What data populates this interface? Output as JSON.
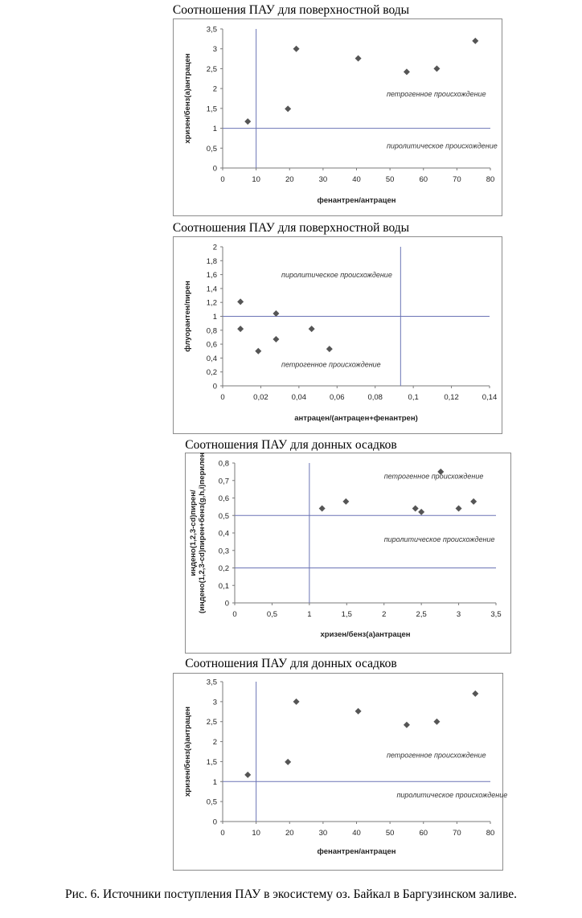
{
  "chart_data": [
    {
      "type": "scatter",
      "title": "Соотношения ПАУ для поверхностной воды",
      "xlabel": "фенантрен/антрацен",
      "ylabel": "хризен/бенз(а)антрацен",
      "xlim": [
        0,
        80
      ],
      "ylim": [
        0,
        3.5
      ],
      "x_ticks": [
        "0",
        "10",
        "20",
        "30",
        "40",
        "50",
        "60",
        "70",
        "80"
      ],
      "y_ticks": [
        "0",
        "0,5",
        "1",
        "1,5",
        "2",
        "2,5",
        "3",
        "3,5"
      ],
      "grid": false,
      "marker_color": "#555555",
      "line_color": "#6b74b5",
      "vlines": [
        10
      ],
      "hlines": [
        1
      ],
      "regions": [
        {
          "text": "петрогенное происхождение",
          "x": 49,
          "y": 1.8
        },
        {
          "text": "пиролитическое происхождение",
          "x": 49,
          "y": 0.5
        }
      ],
      "points": [
        {
          "x": 7.5,
          "y": 1.17
        },
        {
          "x": 19.5,
          "y": 1.49
        },
        {
          "x": 22,
          "y": 3.0
        },
        {
          "x": 40.5,
          "y": 2.76
        },
        {
          "x": 55,
          "y": 2.42
        },
        {
          "x": 64,
          "y": 2.5
        },
        {
          "x": 75.5,
          "y": 3.2
        }
      ]
    },
    {
      "type": "scatter",
      "title": "Соотношения ПАУ для поверхностной воды",
      "xlabel": "антрацен/(антрацен+фенантрен)",
      "ylabel": "флуорантен/пирен",
      "xlim": [
        0,
        0.15
      ],
      "ylim": [
        0,
        2
      ],
      "x_ticks": [
        "0",
        "0,02",
        "0,04",
        "0,06",
        "0,08",
        "0,1",
        "0,12",
        "0,14"
      ],
      "y_ticks": [
        "0",
        "0,2",
        "0,4",
        "0,6",
        "0,8",
        "1",
        "1,2",
        "1,4",
        "1,6",
        "1,8",
        "2"
      ],
      "grid": false,
      "marker_color": "#555555",
      "line_color": "#6b74b5",
      "vlines": [
        0.1
      ],
      "hlines": [
        1
      ],
      "regions": [
        {
          "text": "пиролитическое происхождение",
          "x": 0.033,
          "y": 1.56
        },
        {
          "text": "петрогенное происхождение",
          "x": 0.033,
          "y": 0.27
        }
      ],
      "points": [
        {
          "x": 0.01,
          "y": 1.21
        },
        {
          "x": 0.01,
          "y": 0.82
        },
        {
          "x": 0.02,
          "y": 0.5
        },
        {
          "x": 0.03,
          "y": 1.04
        },
        {
          "x": 0.03,
          "y": 0.67
        },
        {
          "x": 0.05,
          "y": 0.82
        },
        {
          "x": 0.06,
          "y": 0.53
        }
      ]
    },
    {
      "type": "scatter",
      "title": "Соотношения ПАУ для донных осадков",
      "xlabel": "хризен/бенз(а)антрацен",
      "ylabel": "индено(1,2,3-cd)пирен/(индено(1,2,3-cd)пирен+бенз(g,h,i)перилен",
      "xlim": [
        0,
        3.5
      ],
      "ylim": [
        0,
        0.8
      ],
      "x_ticks": [
        "0",
        "0,5",
        "1",
        "1,5",
        "2",
        "2,5",
        "3",
        "3,5"
      ],
      "y_ticks": [
        "0",
        "0,1",
        "0,2",
        "0,3",
        "0,4",
        "0,5",
        "0,6",
        "0,7",
        "0,8"
      ],
      "grid": false,
      "marker_color": "#555555",
      "line_color": "#6b74b5",
      "vlines": [
        1
      ],
      "hlines": [
        0.5,
        0.2
      ],
      "regions": [
        {
          "text": "петрогенное происхождение",
          "x": 2.0,
          "y": 0.71
        },
        {
          "text": "пиролитическое происхождение",
          "x": 2.0,
          "y": 0.35
        }
      ],
      "points": [
        {
          "x": 1.17,
          "y": 0.54
        },
        {
          "x": 1.49,
          "y": 0.58
        },
        {
          "x": 2.42,
          "y": 0.54
        },
        {
          "x": 2.5,
          "y": 0.52
        },
        {
          "x": 2.76,
          "y": 0.75
        },
        {
          "x": 3.0,
          "y": 0.54
        },
        {
          "x": 3.2,
          "y": 0.58
        }
      ]
    },
    {
      "type": "scatter",
      "title": "Соотношения ПАУ для донных осадков",
      "xlabel": "фенантрен/антрацен",
      "ylabel": "хризен/бенз(а)антрацен",
      "xlim": [
        0,
        80
      ],
      "ylim": [
        0,
        3.5
      ],
      "x_ticks": [
        "0",
        "10",
        "20",
        "30",
        "40",
        "50",
        "60",
        "70",
        "80"
      ],
      "y_ticks": [
        "0",
        "0,5",
        "1",
        "1,5",
        "2",
        "2,5",
        "3",
        "3,5"
      ],
      "grid": false,
      "marker_color": "#555555",
      "line_color": "#6b74b5",
      "vlines": [
        10
      ],
      "hlines": [
        1
      ],
      "regions": [
        {
          "text": "петрогенное происхождение",
          "x": 49,
          "y": 1.6
        },
        {
          "text": "пиролитическое происхождение",
          "x": 52,
          "y": 0.6
        }
      ],
      "points": [
        {
          "x": 7.5,
          "y": 1.17
        },
        {
          "x": 19.5,
          "y": 1.49
        },
        {
          "x": 22,
          "y": 3.0
        },
        {
          "x": 40.5,
          "y": 2.76
        },
        {
          "x": 55,
          "y": 2.42
        },
        {
          "x": 64,
          "y": 2.5
        },
        {
          "x": 75.5,
          "y": 3.2
        }
      ]
    }
  ],
  "caption": "Рис. 6. Источники поступления ПАУ в экосистему оз. Байкал в Баргузинском заливе."
}
